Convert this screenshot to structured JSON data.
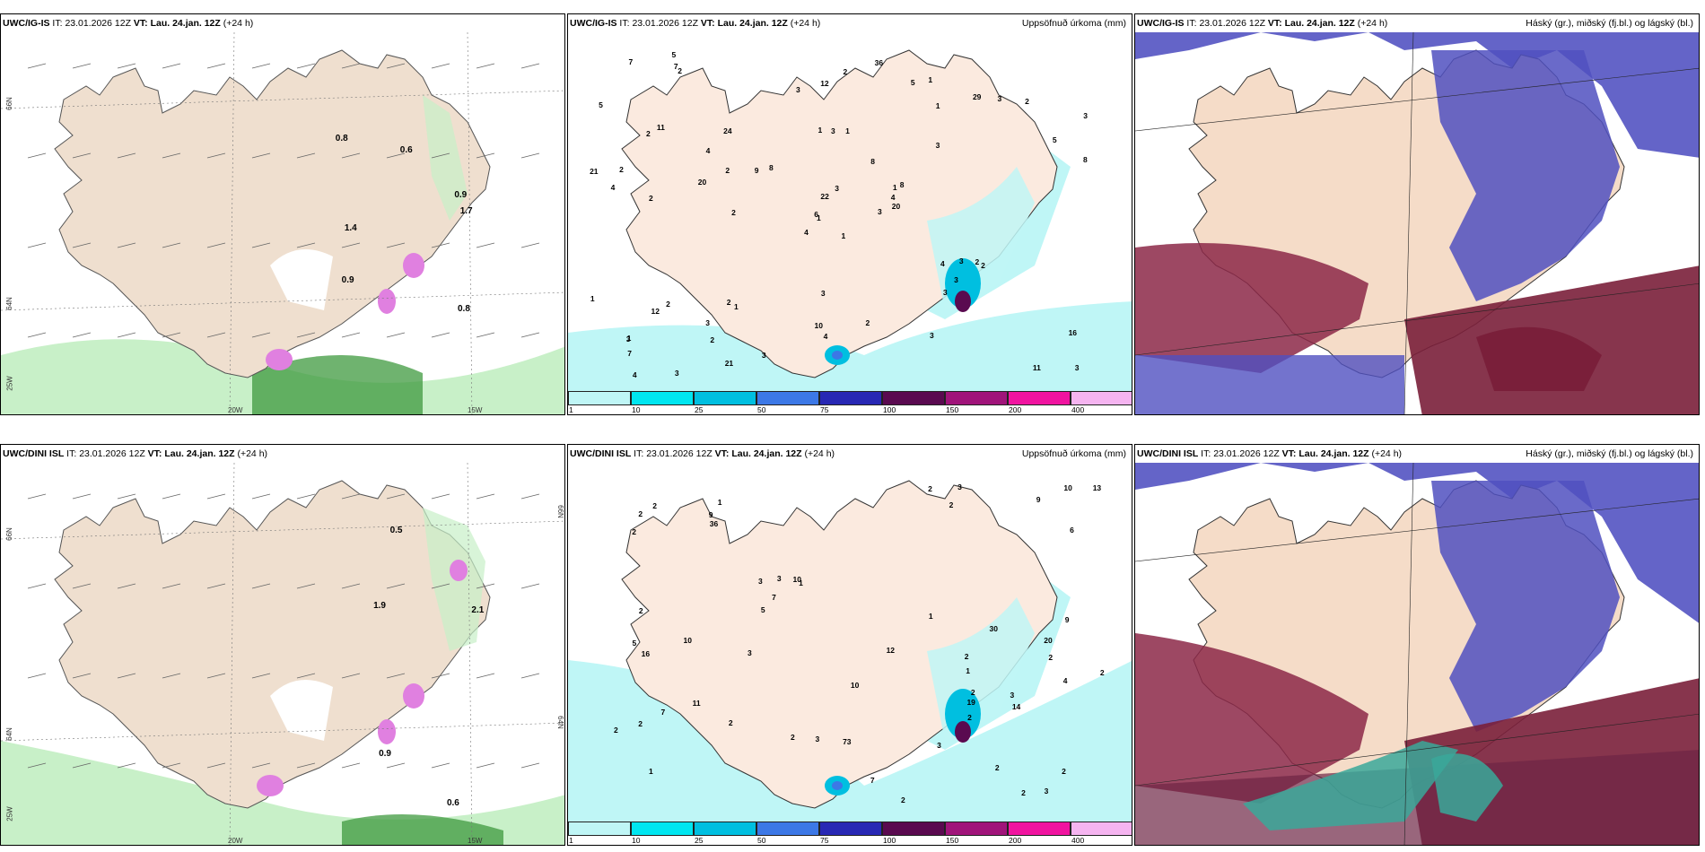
{
  "panels": [
    {
      "model": "UWC/IG-IS",
      "it_label": "IT:",
      "it": "23.01.2026 12Z",
      "vt_label": "VT:",
      "vt": "Lau. 24.jan. 12Z",
      "lead": "(+24 h)",
      "right": ""
    },
    {
      "model": "UWC/IG-IS",
      "it_label": "IT:",
      "it": "23.01.2026 12Z",
      "vt_label": "VT:",
      "vt": "Lau. 24.jan. 12Z",
      "lead": "(+24 h)",
      "right": "Uppsöfnuð úrkoma (mm)"
    },
    {
      "model": "UWC/IG-IS",
      "it_label": "IT:",
      "it": "23.01.2026 12Z",
      "vt_label": "VT:",
      "vt": "Lau. 24.jan. 12Z",
      "lead": "(+24 h)",
      "right": "Háský (gr.), miðský (fj.bl.) og lágský (bl.)"
    },
    {
      "model": "UWC/DINI ISL",
      "it_label": "IT:",
      "it": "23.01.2026 12Z",
      "vt_label": "VT:",
      "vt": "Lau. 24.jan. 12Z",
      "lead": "(+24 h)",
      "right": ""
    },
    {
      "model": "UWC/DINI ISL",
      "it_label": "IT:",
      "it": "23.01.2026 12Z",
      "vt_label": "VT:",
      "vt": "Lau. 24.jan. 12Z",
      "lead": "(+24 h)",
      "right": "Uppsöfnuð úrkoma (mm)"
    },
    {
      "model": "UWC/DINI ISL",
      "it_label": "IT:",
      "it": "23.01.2026 12Z",
      "vt_label": "VT:",
      "vt": "Lau. 24.jan. 12Z",
      "lead": "(+24 h)",
      "right": "Háský (gr.), miðský (fj.bl.) og lágský (bl.)"
    }
  ],
  "precip_scale": {
    "ticks": [
      "1",
      "10",
      "25",
      "50",
      "75",
      "100",
      "150",
      "200",
      "400"
    ],
    "colors": [
      "#bff6f6",
      "#00e6f0",
      "#00bfe0",
      "#3c78e6",
      "#2828b4",
      "#5a0a50",
      "#a0147a",
      "#f014a0",
      "#f5b4f0"
    ]
  },
  "axis_labels": {
    "lat66": "66N",
    "lat64": "64N",
    "lon25": "25W",
    "lon20": "20W",
    "lon15": "15W",
    "rlat66": "66N",
    "rlat64": "64N"
  },
  "wind_values_top": [
    "0.8",
    "0.9",
    "0.6",
    "1.7",
    "1.4",
    "0.8",
    "0.9"
  ],
  "wind_values_bottom": [
    "0.6",
    "0.5",
    "0.9",
    "1.9",
    "2.1"
  ],
  "precip_labels_top": [
    "1",
    "2",
    "1",
    "1",
    "1",
    "1",
    "1",
    "1",
    "1",
    "3",
    "2",
    "3",
    "2",
    "3",
    "4",
    "3",
    "3",
    "1",
    "8",
    "2",
    "8",
    "7",
    "2",
    "3",
    "8",
    "2",
    "11",
    "12",
    "4",
    "4",
    "8",
    "6",
    "10",
    "22",
    "24",
    "29",
    "2",
    "11",
    "16",
    "2",
    "36",
    "9",
    "20",
    "3",
    "21",
    "21",
    "4",
    "4",
    "4",
    "20",
    "12",
    "5",
    "5",
    "3",
    "3",
    "3",
    "7",
    "7",
    "2",
    "2",
    "2",
    "2",
    "2",
    "4",
    "3",
    "5",
    "5",
    "3",
    "3",
    "1",
    "3",
    "3",
    "3",
    "2",
    "3"
  ],
  "precip_labels_bottom": [
    "1",
    "2",
    "1",
    "1",
    "1",
    "2",
    "2",
    "2",
    "3",
    "2",
    "2",
    "5",
    "2",
    "2",
    "2",
    "9",
    "10",
    "12",
    "10",
    "11",
    "13",
    "9",
    "5",
    "4",
    "2",
    "9",
    "2",
    "16",
    "36",
    "30",
    "7",
    "3",
    "7",
    "3",
    "20",
    "14",
    "19",
    "10",
    "73",
    "7",
    "6",
    "3",
    "3",
    "3",
    "3",
    "2",
    "2",
    "2",
    "1",
    "2",
    "2",
    "3",
    "10",
    "2",
    "2",
    "2"
  ],
  "icons": {
    "map": "iceland-map-icon"
  }
}
